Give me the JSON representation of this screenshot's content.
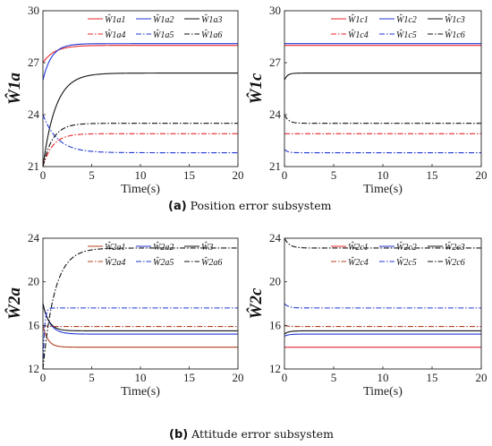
{
  "captions": [
    {
      "letter": "(a)",
      "text": " Position error subsystem"
    },
    {
      "letter": "(b)",
      "text": " Attitude error subsystem"
    }
  ],
  "chart_data": [
    {
      "type": "line",
      "ylabel": "Ŵ1a",
      "xlabel": "Time(s)",
      "xlim": [
        0,
        20
      ],
      "ylim": [
        21,
        30
      ],
      "xticks": [
        "0",
        "5",
        "10",
        "15",
        "20"
      ],
      "yticks": [
        "21",
        "24",
        "27",
        "30"
      ],
      "legend_position": "top-right",
      "series": [
        {
          "name": "Ŵ1a1",
          "color": "#e8262b",
          "dash": "solid",
          "init": 27.0,
          "final": 28.0,
          "tau": 1.2
        },
        {
          "name": "Ŵ1a2",
          "color": "#1f37d6",
          "dash": "solid",
          "init": 26.0,
          "final": 28.1,
          "tau": 0.9
        },
        {
          "name": "Ŵ1a3",
          "color": "#111111",
          "dash": "solid",
          "init": 21.0,
          "final": 26.4,
          "tau": 1.3
        },
        {
          "name": "Ŵ1a4",
          "color": "#e8262b",
          "dash": "dashdot",
          "init": 21.0,
          "final": 22.9,
          "tau": 1.0
        },
        {
          "name": "Ŵ1a5",
          "color": "#1f37d6",
          "dash": "dashdot",
          "init": 24.0,
          "final": 21.8,
          "tau": 1.5
        },
        {
          "name": "Ŵ1a6",
          "color": "#111111",
          "dash": "dashdot",
          "init": 21.0,
          "final": 23.5,
          "tau": 1.0
        }
      ]
    },
    {
      "type": "line",
      "ylabel": "Ŵ1c",
      "xlabel": "Time(s)",
      "xlim": [
        0,
        20
      ],
      "ylim": [
        21,
        30
      ],
      "xticks": [
        "0",
        "5",
        "10",
        "15",
        "20"
      ],
      "yticks": [
        "21",
        "24",
        "27",
        "30"
      ],
      "legend_position": "top-right",
      "series": [
        {
          "name": "Ŵ1c1",
          "color": "#e8262b",
          "dash": "solid",
          "init": 28.0,
          "final": 28.0,
          "tau": 0.3
        },
        {
          "name": "Ŵ1c2",
          "color": "#1f37d6",
          "dash": "solid",
          "init": 28.1,
          "final": 28.1,
          "tau": 0.3
        },
        {
          "name": "Ŵ1c3",
          "color": "#111111",
          "dash": "solid",
          "init": 26.0,
          "final": 26.4,
          "tau": 0.3
        },
        {
          "name": "Ŵ1c4",
          "color": "#e8262b",
          "dash": "dashdot",
          "init": 22.9,
          "final": 22.9,
          "tau": 0.3
        },
        {
          "name": "Ŵ1c5",
          "color": "#1f37d6",
          "dash": "dashdot",
          "init": 22.0,
          "final": 21.8,
          "tau": 0.3
        },
        {
          "name": "Ŵ1c6",
          "color": "#111111",
          "dash": "dashdot",
          "init": 24.0,
          "final": 23.5,
          "tau": 0.4
        }
      ]
    },
    {
      "type": "line",
      "ylabel": "Ŵ2a",
      "xlabel": "Time(s)",
      "xlim": [
        0,
        20
      ],
      "ylim": [
        12,
        24
      ],
      "xticks": [
        "0",
        "5",
        "10",
        "15",
        "20"
      ],
      "yticks": [
        "12",
        "16",
        "20",
        "24"
      ],
      "legend_position": "top-right",
      "series": [
        {
          "name": "Ŵ2a1",
          "color": "#b0401e",
          "dash": "solid",
          "init": 16.0,
          "final": 14.0,
          "tau": 0.5
        },
        {
          "name": "Ŵ2a2",
          "color": "#1f37d6",
          "dash": "solid",
          "init": 18.0,
          "final": 15.2,
          "tau": 0.7
        },
        {
          "name": "Ŵ3",
          "color": "#111111",
          "dash": "solid",
          "init": 18.0,
          "final": 15.5,
          "tau": 0.6
        },
        {
          "name": "Ŵ2a4",
          "color": "#b0401e",
          "dash": "dashdot",
          "init": 16.0,
          "final": 15.9,
          "tau": 0.4
        },
        {
          "name": "Ŵ2a5",
          "color": "#1f37d6",
          "dash": "dashdot",
          "init": 12.0,
          "final": 17.6,
          "tau": 0.15
        },
        {
          "name": "Ŵ2a6",
          "color": "#111111",
          "dash": "dashdot",
          "init": 12.0,
          "final": 23.1,
          "tau": 1.2
        }
      ]
    },
    {
      "type": "line",
      "ylabel": "Ŵ2c",
      "xlabel": "Time(s)",
      "xlim": [
        0,
        20
      ],
      "ylim": [
        12,
        24
      ],
      "xticks": [
        "0",
        "5",
        "10",
        "15",
        "20"
      ],
      "yticks": [
        "12",
        "16",
        "20",
        "24"
      ],
      "legend_position": "top-right",
      "series": [
        {
          "name": "Ŵ2c1",
          "color": "#e8262b",
          "dash": "solid",
          "init": 14.0,
          "final": 14.0,
          "tau": 0.3
        },
        {
          "name": "Ŵ2c2",
          "color": "#1f37d6",
          "dash": "solid",
          "init": 15.0,
          "final": 15.2,
          "tau": 0.4
        },
        {
          "name": "Ŵ2c3",
          "color": "#111111",
          "dash": "solid",
          "init": 15.2,
          "final": 15.5,
          "tau": 0.4
        },
        {
          "name": "Ŵ2c4",
          "color": "#b0401e",
          "dash": "dashdot",
          "init": 16.0,
          "final": 15.9,
          "tau": 0.3
        },
        {
          "name": "Ŵ2c5",
          "color": "#1f37d6",
          "dash": "dashdot",
          "init": 18.0,
          "final": 17.6,
          "tau": 0.4
        },
        {
          "name": "Ŵ2c6",
          "color": "#111111",
          "dash": "dashdot",
          "init": 24.0,
          "final": 23.1,
          "tau": 0.5
        }
      ]
    }
  ]
}
